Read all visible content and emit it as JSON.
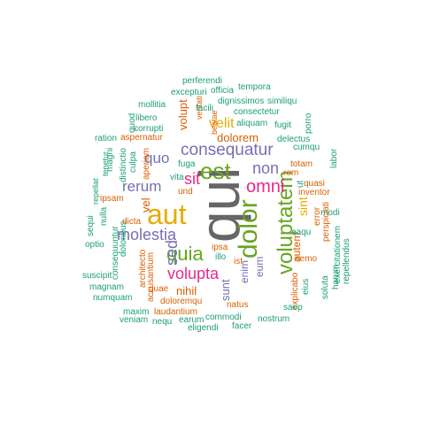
{
  "palette": {
    "teal": "#1b9e77",
    "orange": "#d95f02",
    "purple": "#7570b3",
    "magenta": "#e7298a",
    "green": "#66a61e",
    "gold": "#e6ab02",
    "gray": "#666666"
  },
  "words": [
    {
      "text": "qui",
      "color": "gray"
    },
    {
      "text": "aut",
      "color": "gold"
    },
    {
      "text": "dolor",
      "color": "green"
    },
    {
      "text": "voluptatem",
      "color": "green"
    },
    {
      "text": "est",
      "color": "green"
    },
    {
      "text": "consequatur",
      "color": "purple"
    },
    {
      "text": "quia",
      "color": "green"
    },
    {
      "text": "molestia",
      "color": "purple"
    },
    {
      "text": "omni",
      "color": "magenta"
    },
    {
      "text": "volupta",
      "color": "magenta"
    },
    {
      "text": "non",
      "color": "purple"
    },
    {
      "text": "rerum",
      "color": "purple"
    },
    {
      "text": "quo",
      "color": "purple"
    },
    {
      "text": "sit",
      "color": "magenta"
    },
    {
      "text": "sed",
      "color": "purple"
    },
    {
      "text": "velit",
      "color": "gold"
    },
    {
      "text": "dolorem",
      "color": "orange"
    },
    {
      "text": "sint",
      "color": "gold"
    },
    {
      "text": "autem",
      "color": "orange"
    },
    {
      "text": "nihil",
      "color": "orange"
    },
    {
      "text": "vel",
      "color": "orange"
    },
    {
      "text": "volupt",
      "color": "orange"
    },
    {
      "text": "enim",
      "color": "purple"
    },
    {
      "text": "eum",
      "color": "purple"
    },
    {
      "text": "sunt",
      "color": "purple"
    },
    {
      "text": "perferendi",
      "color": "teal"
    },
    {
      "text": "excepturi",
      "color": "teal"
    },
    {
      "text": "officia",
      "color": "teal"
    },
    {
      "text": "tempora",
      "color": "teal"
    },
    {
      "text": "dignissimos",
      "color": "teal"
    },
    {
      "text": "similiqu",
      "color": "teal"
    },
    {
      "text": "mollitia",
      "color": "teal"
    },
    {
      "text": "veritati",
      "color": "orange"
    },
    {
      "text": "consectetur",
      "color": "teal"
    },
    {
      "text": "libero",
      "color": "teal"
    },
    {
      "text": "facili",
      "color": "teal"
    },
    {
      "text": "aliquam",
      "color": "teal"
    },
    {
      "text": "porro",
      "color": "teal"
    },
    {
      "text": "quod",
      "color": "teal"
    },
    {
      "text": "corrupti",
      "color": "teal"
    },
    {
      "text": "beatae",
      "color": "orange"
    },
    {
      "text": "fugit",
      "color": "teal"
    },
    {
      "text": "ration",
      "color": "teal"
    },
    {
      "text": "aspernatur",
      "color": "orange"
    },
    {
      "text": "delectus",
      "color": "teal"
    },
    {
      "text": "magni",
      "color": "teal"
    },
    {
      "text": "cumqu",
      "color": "teal"
    },
    {
      "text": "distinctio",
      "color": "teal"
    },
    {
      "text": "culpa",
      "color": "teal"
    },
    {
      "text": "totam",
      "color": "orange"
    },
    {
      "text": "labor",
      "color": "teal"
    },
    {
      "text": "repellat",
      "color": "teal"
    },
    {
      "text": "tenetur",
      "color": "teal"
    },
    {
      "text": "fuga",
      "color": "teal"
    },
    {
      "text": "rem",
      "color": "orange"
    },
    {
      "text": "aperiam",
      "color": "orange"
    },
    {
      "text": "vita",
      "color": "teal"
    },
    {
      "text": "quasi",
      "color": "orange"
    },
    {
      "text": "nulla",
      "color": "teal"
    },
    {
      "text": "doloribus",
      "color": "teal"
    },
    {
      "text": "ut",
      "color": "teal"
    },
    {
      "text": "inventor",
      "color": "orange"
    },
    {
      "text": "sequi",
      "color": "teal"
    },
    {
      "text": "und",
      "color": "orange"
    },
    {
      "text": "ipsam",
      "color": "orange"
    },
    {
      "text": "error",
      "color": "orange"
    },
    {
      "text": "modi",
      "color": "teal"
    },
    {
      "text": "dicta",
      "color": "orange"
    },
    {
      "text": "perspiciati",
      "color": "orange"
    },
    {
      "text": "optio",
      "color": "teal"
    },
    {
      "text": "consequuntur",
      "color": "teal"
    },
    {
      "text": "eaqu",
      "color": "teal"
    },
    {
      "text": "ipsa",
      "color": "orange"
    },
    {
      "text": "illo",
      "color": "teal"
    },
    {
      "text": "ist",
      "color": "orange"
    },
    {
      "text": "nemo",
      "color": "orange"
    },
    {
      "text": "exercitationem",
      "color": "teal"
    },
    {
      "text": "architecto",
      "color": "orange"
    },
    {
      "text": "accusantium",
      "color": "orange"
    },
    {
      "text": "harum",
      "color": "teal"
    },
    {
      "text": "repellendus",
      "color": "teal"
    },
    {
      "text": "suscipit",
      "color": "teal"
    },
    {
      "text": "explicabo",
      "color": "orange"
    },
    {
      "text": "eius",
      "color": "teal"
    },
    {
      "text": "soluta",
      "color": "teal"
    },
    {
      "text": "magnam",
      "color": "teal"
    },
    {
      "text": "quae",
      "color": "orange"
    },
    {
      "text": "numquam",
      "color": "teal"
    },
    {
      "text": "doloremqu",
      "color": "orange"
    },
    {
      "text": "natus",
      "color": "orange"
    },
    {
      "text": "saep",
      "color": "teal"
    },
    {
      "text": "maxim",
      "color": "teal"
    },
    {
      "text": "laudantium",
      "color": "orange"
    },
    {
      "text": "commodi",
      "color": "teal"
    },
    {
      "text": "nostrum",
      "color": "teal"
    },
    {
      "text": "veniam",
      "color": "teal"
    },
    {
      "text": "nequ",
      "color": "teal"
    },
    {
      "text": "earum",
      "color": "teal"
    },
    {
      "text": "eligendi",
      "color": "teal"
    },
    {
      "text": "facer",
      "color": "teal"
    }
  ]
}
